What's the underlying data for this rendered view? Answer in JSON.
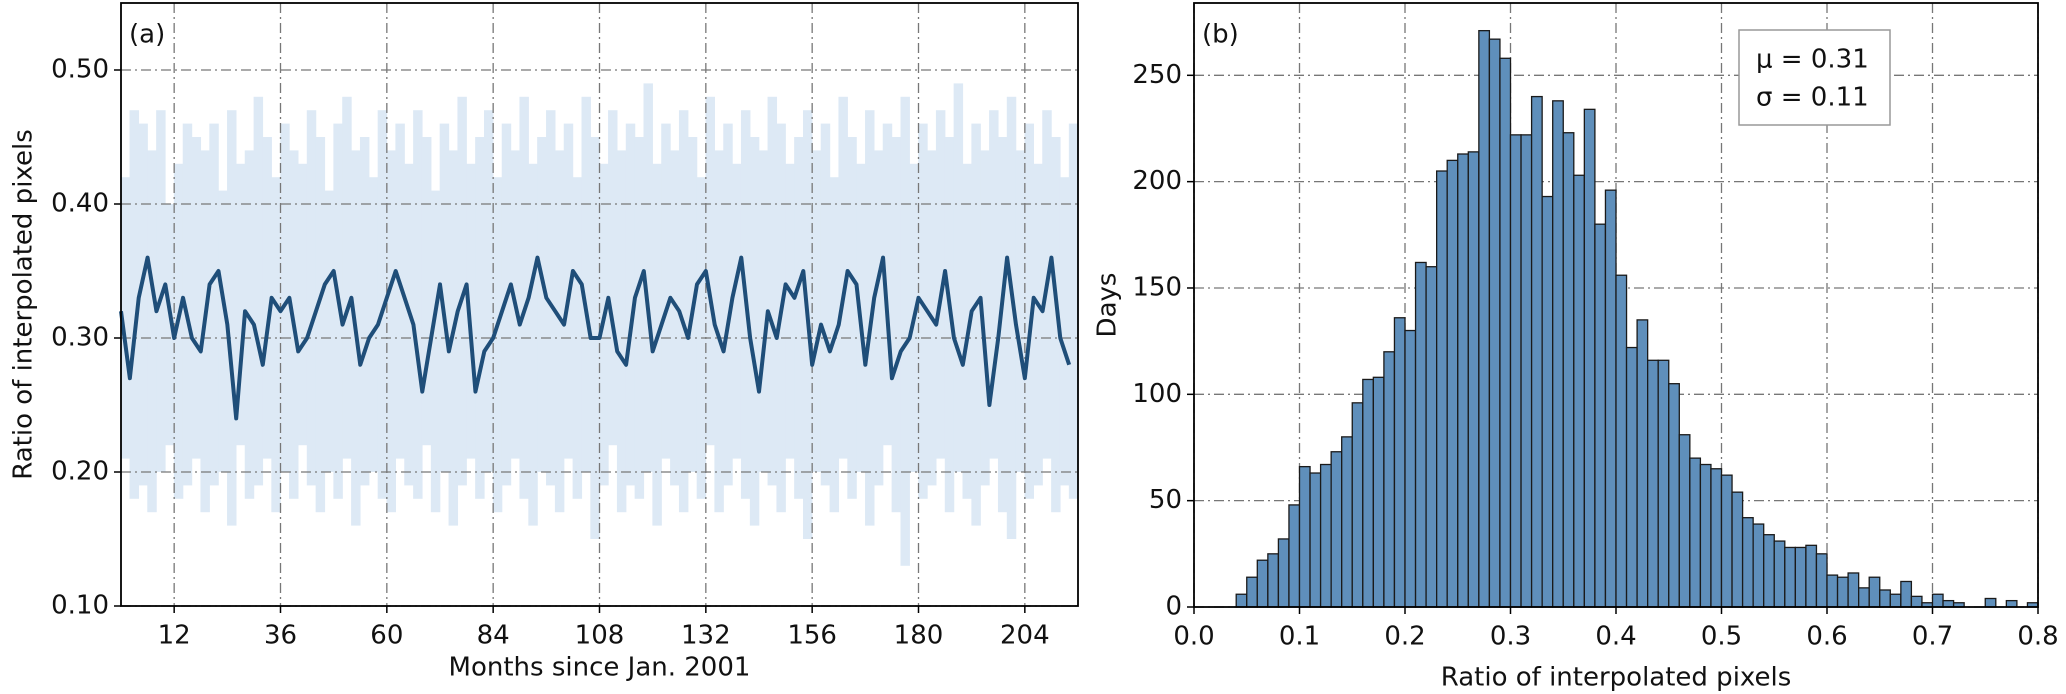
{
  "chart_data": [
    {
      "type": "line",
      "panel_label": "(a)",
      "x_label": "Months since Jan. 2001",
      "y_label": "Ratio of interpolated pixels",
      "xlim": [
        0,
        216
      ],
      "xticks": [
        12,
        36,
        60,
        84,
        108,
        132,
        156,
        180,
        204
      ],
      "ylim": [
        0.1,
        0.55
      ],
      "yticks": [
        {
          "value": 0.1,
          "label": "0.10"
        },
        {
          "value": 0.2,
          "label": "0.20"
        },
        {
          "value": 0.3,
          "label": "0.30"
        },
        {
          "value": 0.4,
          "label": "0.40"
        },
        {
          "value": 0.5,
          "label": "0.50"
        }
      ],
      "grid": true,
      "color": "#1f4e79",
      "band_color": "#dde9f5",
      "x": [
        0,
        2,
        4,
        6,
        8,
        10,
        12,
        14,
        16,
        18,
        20,
        22,
        24,
        26,
        28,
        30,
        32,
        34,
        36,
        38,
        40,
        42,
        44,
        46,
        48,
        50,
        52,
        54,
        56,
        58,
        60,
        62,
        64,
        66,
        68,
        70,
        72,
        74,
        76,
        78,
        80,
        82,
        84,
        86,
        88,
        90,
        92,
        94,
        96,
        98,
        100,
        102,
        104,
        106,
        108,
        110,
        112,
        114,
        116,
        118,
        120,
        122,
        124,
        126,
        128,
        130,
        132,
        134,
        136,
        138,
        140,
        142,
        144,
        146,
        148,
        150,
        152,
        154,
        156,
        158,
        160,
        162,
        164,
        166,
        168,
        170,
        172,
        174,
        176,
        178,
        180,
        182,
        184,
        186,
        188,
        190,
        192,
        194,
        196,
        198,
        200,
        202,
        204,
        206,
        208,
        210,
        212,
        214
      ],
      "values": [
        0.32,
        0.27,
        0.33,
        0.36,
        0.32,
        0.34,
        0.3,
        0.33,
        0.3,
        0.29,
        0.34,
        0.35,
        0.31,
        0.24,
        0.32,
        0.31,
        0.28,
        0.33,
        0.32,
        0.33,
        0.29,
        0.3,
        0.32,
        0.34,
        0.35,
        0.31,
        0.33,
        0.28,
        0.3,
        0.31,
        0.33,
        0.35,
        0.33,
        0.31,
        0.26,
        0.3,
        0.34,
        0.29,
        0.32,
        0.34,
        0.26,
        0.29,
        0.3,
        0.32,
        0.34,
        0.31,
        0.33,
        0.36,
        0.33,
        0.32,
        0.31,
        0.35,
        0.34,
        0.3,
        0.3,
        0.33,
        0.29,
        0.28,
        0.33,
        0.35,
        0.29,
        0.31,
        0.33,
        0.32,
        0.3,
        0.34,
        0.35,
        0.31,
        0.29,
        0.33,
        0.36,
        0.3,
        0.26,
        0.32,
        0.3,
        0.34,
        0.33,
        0.35,
        0.28,
        0.31,
        0.29,
        0.31,
        0.35,
        0.34,
        0.28,
        0.33,
        0.36,
        0.27,
        0.29,
        0.3,
        0.33,
        0.32,
        0.31,
        0.35,
        0.3,
        0.28,
        0.32,
        0.33,
        0.25,
        0.3,
        0.36,
        0.31,
        0.27,
        0.33,
        0.32,
        0.36,
        0.3,
        0.28
      ],
      "band_upper": [
        0.42,
        0.47,
        0.46,
        0.44,
        0.47,
        0.4,
        0.43,
        0.46,
        0.45,
        0.44,
        0.46,
        0.41,
        0.47,
        0.43,
        0.44,
        0.48,
        0.45,
        0.42,
        0.46,
        0.44,
        0.43,
        0.47,
        0.45,
        0.41,
        0.46,
        0.48,
        0.44,
        0.45,
        0.42,
        0.47,
        0.44,
        0.46,
        0.43,
        0.47,
        0.45,
        0.41,
        0.46,
        0.44,
        0.48,
        0.43,
        0.45,
        0.47,
        0.42,
        0.46,
        0.44,
        0.48,
        0.43,
        0.45,
        0.47,
        0.44,
        0.46,
        0.42,
        0.48,
        0.45,
        0.43,
        0.47,
        0.44,
        0.46,
        0.45,
        0.49,
        0.43,
        0.46,
        0.44,
        0.47,
        0.45,
        0.42,
        0.48,
        0.44,
        0.46,
        0.43,
        0.47,
        0.45,
        0.44,
        0.48,
        0.46,
        0.43,
        0.45,
        0.47,
        0.44,
        0.46,
        0.42,
        0.48,
        0.45,
        0.43,
        0.47,
        0.44,
        0.46,
        0.45,
        0.48,
        0.43,
        0.46,
        0.44,
        0.47,
        0.45,
        0.49,
        0.43,
        0.46,
        0.44,
        0.47,
        0.45,
        0.48,
        0.44,
        0.46,
        0.43,
        0.47,
        0.45,
        0.42,
        0.46
      ],
      "band_lower": [
        0.21,
        0.18,
        0.19,
        0.17,
        0.2,
        0.22,
        0.18,
        0.19,
        0.21,
        0.17,
        0.19,
        0.2,
        0.16,
        0.22,
        0.18,
        0.19,
        0.21,
        0.17,
        0.2,
        0.18,
        0.22,
        0.19,
        0.17,
        0.2,
        0.18,
        0.21,
        0.16,
        0.19,
        0.2,
        0.18,
        0.17,
        0.21,
        0.19,
        0.18,
        0.22,
        0.17,
        0.2,
        0.16,
        0.19,
        0.21,
        0.18,
        0.2,
        0.17,
        0.19,
        0.21,
        0.18,
        0.16,
        0.2,
        0.19,
        0.17,
        0.21,
        0.18,
        0.2,
        0.15,
        0.19,
        0.22,
        0.17,
        0.19,
        0.18,
        0.2,
        0.16,
        0.21,
        0.19,
        0.17,
        0.2,
        0.18,
        0.22,
        0.17,
        0.19,
        0.21,
        0.18,
        0.16,
        0.2,
        0.19,
        0.17,
        0.21,
        0.18,
        0.15,
        0.2,
        0.19,
        0.17,
        0.21,
        0.18,
        0.2,
        0.16,
        0.19,
        0.22,
        0.17,
        0.13,
        0.2,
        0.18,
        0.19,
        0.21,
        0.17,
        0.2,
        0.18,
        0.16,
        0.19,
        0.21,
        0.17,
        0.15,
        0.2,
        0.18,
        0.19,
        0.21,
        0.17,
        0.19,
        0.18
      ]
    },
    {
      "type": "histogram",
      "panel_label": "(b)",
      "x_label": "Ratio of interpolated pixels",
      "y_label": "Days",
      "xlim": [
        0,
        0.8
      ],
      "xticks": [
        {
          "value": 0,
          "label": "0.0"
        },
        {
          "value": 0.1,
          "label": "0.1"
        },
        {
          "value": 0.2,
          "label": "0.2"
        },
        {
          "value": 0.3,
          "label": "0.3"
        },
        {
          "value": 0.4,
          "label": "0.4"
        },
        {
          "value": 0.5,
          "label": "0.5"
        },
        {
          "value": 0.6,
          "label": "0.6"
        },
        {
          "value": 0.7,
          "label": "0.7"
        },
        {
          "value": 0.8,
          "label": "0.8"
        }
      ],
      "ylim": [
        0,
        284
      ],
      "yticks": [
        0,
        50,
        100,
        150,
        200,
        250
      ],
      "grid": true,
      "color": "#5f8fbb",
      "annotations": [
        "μ = 0.31",
        "σ = 0.11"
      ],
      "bins": [
        0.04,
        0.05,
        0.06,
        0.07,
        0.08,
        0.09,
        0.1,
        0.11,
        0.12,
        0.13,
        0.14,
        0.15,
        0.16,
        0.17,
        0.18,
        0.19,
        0.2,
        0.21,
        0.22,
        0.23,
        0.24,
        0.25,
        0.26,
        0.27,
        0.28,
        0.29,
        0.3,
        0.31,
        0.32,
        0.33,
        0.34,
        0.35,
        0.36,
        0.37,
        0.38,
        0.39,
        0.4,
        0.41,
        0.42,
        0.43,
        0.44,
        0.45,
        0.46,
        0.47,
        0.48,
        0.49,
        0.5,
        0.51,
        0.52,
        0.53,
        0.54,
        0.55,
        0.56,
        0.57,
        0.58,
        0.59,
        0.6,
        0.61,
        0.62,
        0.63,
        0.64,
        0.65,
        0.66,
        0.67,
        0.68,
        0.69,
        0.7,
        0.71,
        0.72,
        0.73,
        0.74,
        0.75,
        0.76,
        0.77,
        0.78,
        0.79,
        0.8
      ],
      "values": [
        6,
        14,
        22,
        25,
        32,
        48,
        66,
        63,
        67,
        73,
        80,
        96,
        107,
        108,
        120,
        136,
        130,
        162,
        160,
        205,
        210,
        213,
        214,
        271,
        267,
        258,
        222,
        222,
        240,
        193,
        238,
        223,
        203,
        234,
        180,
        196,
        156,
        122,
        135,
        116,
        116,
        105,
        81,
        70,
        67,
        65,
        62,
        54,
        42,
        39,
        34,
        31,
        28,
        28,
        29,
        25,
        15,
        14,
        16,
        9,
        14,
        8,
        6,
        12,
        5,
        2,
        6,
        3,
        2,
        0,
        0,
        4,
        0,
        3,
        0,
        2
      ]
    }
  ]
}
